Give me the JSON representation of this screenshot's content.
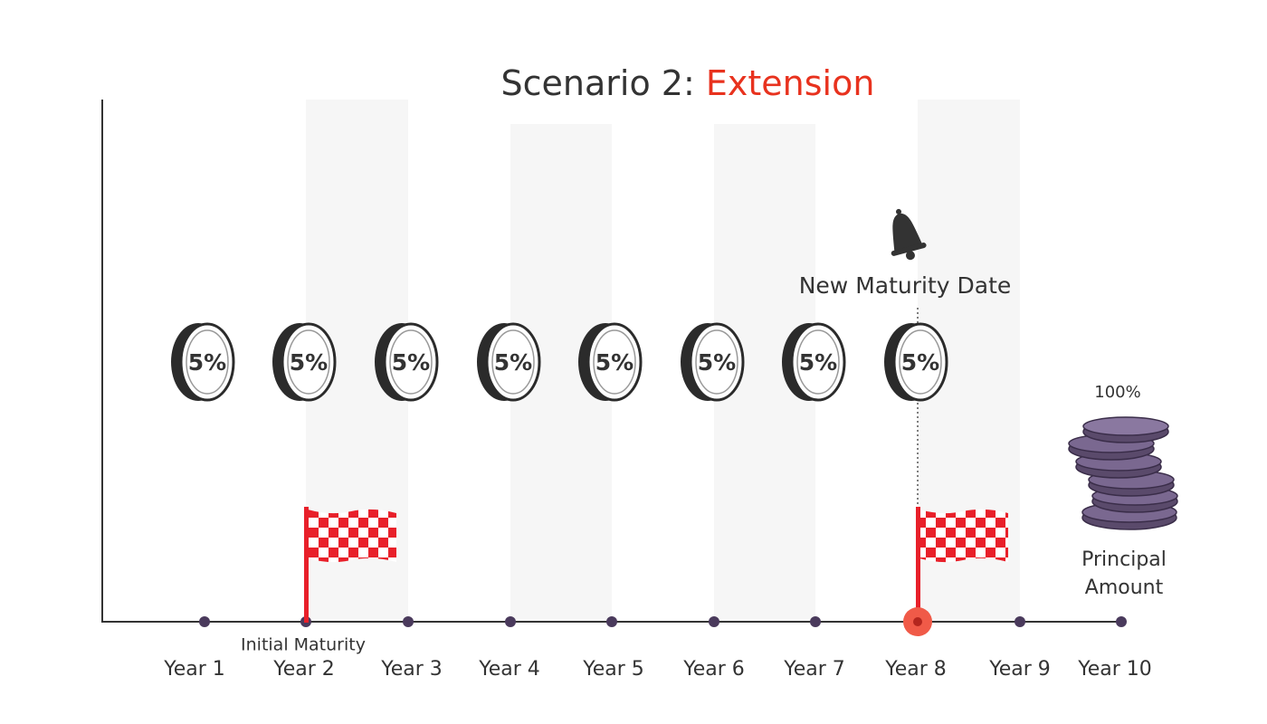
{
  "title": {
    "prefix": "Scenario 2:",
    "highlight": "Extension"
  },
  "coupons": [
    "5%",
    "5%",
    "5%",
    "5%",
    "5%",
    "5%",
    "5%",
    "5%"
  ],
  "years": [
    "Year 1",
    "Year 2",
    "Year 3",
    "Year 4",
    "Year 5",
    "Year 6",
    "Year 7",
    "Year 8",
    "Year 9",
    "Year 10"
  ],
  "annotations": {
    "initial_maturity": "Initial Maturity",
    "new_maturity": "New Maturity Date",
    "principal_percent": "100%",
    "principal_label": [
      "Principal",
      "Amount"
    ]
  }
}
